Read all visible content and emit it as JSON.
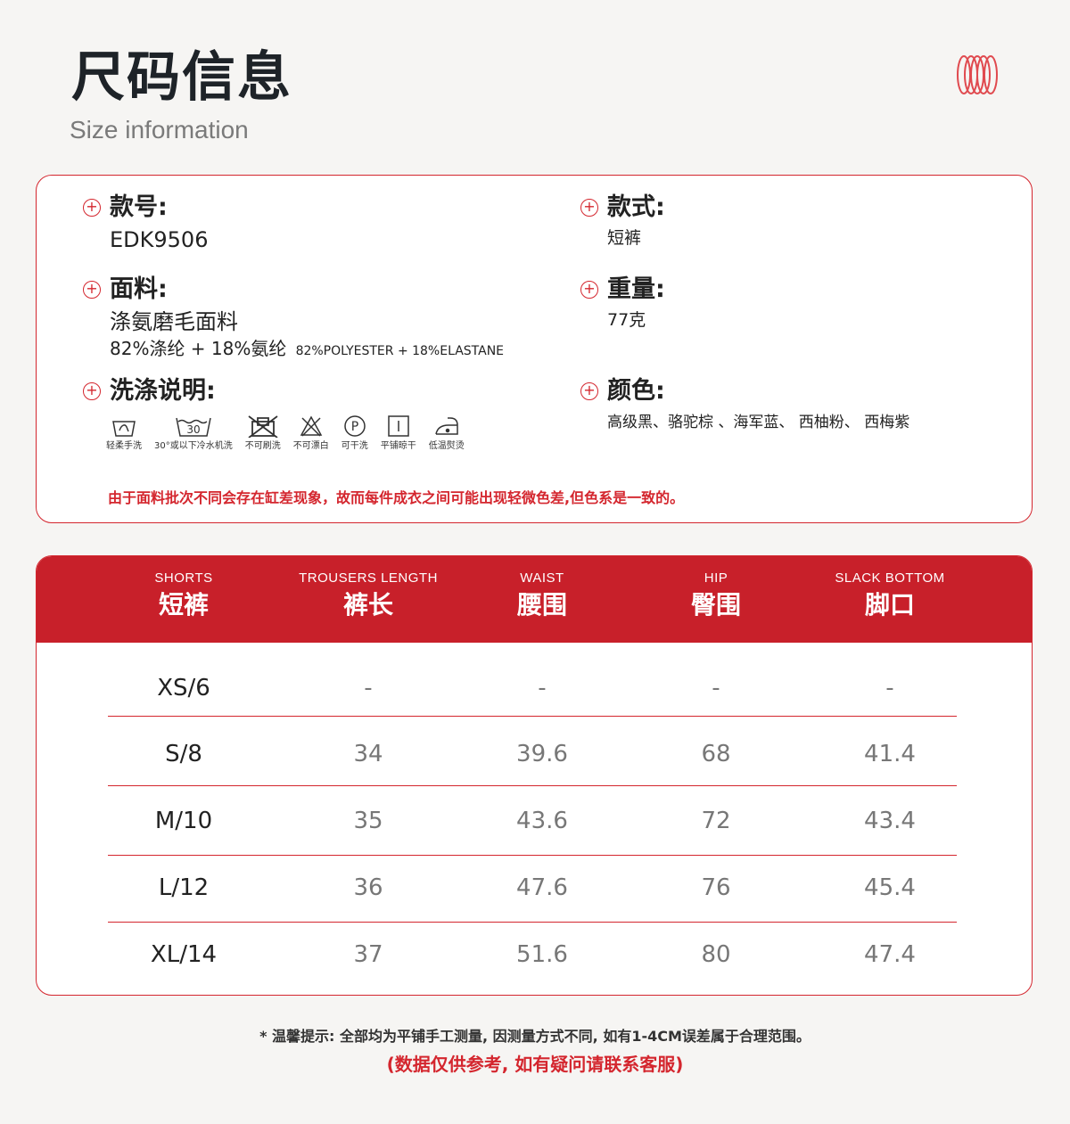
{
  "header": {
    "title": "尺码信息",
    "subtitle": "Size information"
  },
  "accent_color": "#c8202a",
  "info": {
    "style_no": {
      "label": "款号:",
      "value": "EDK9506"
    },
    "style": {
      "label": "款式:",
      "value": "短裤"
    },
    "fabric": {
      "label": "面料:",
      "value": "涤氨磨毛面料",
      "composition_cn": "82%涤纶 + 18%氨纶",
      "composition_en": "82%POLYESTER + 18%ELASTANE"
    },
    "weight": {
      "label": "重量:",
      "value": "77克"
    },
    "care": {
      "label": "洗涤说明:",
      "items": [
        {
          "icon": "hand-wash-icon",
          "label": "轻柔手洗"
        },
        {
          "icon": "machine-wash-30-icon",
          "label": "30°或以下冷水机洗",
          "temp": "30"
        },
        {
          "icon": "no-brush-icon",
          "label": "不可刷洗"
        },
        {
          "icon": "no-bleach-icon",
          "label": "不可漂白"
        },
        {
          "icon": "dry-clean-p-icon",
          "label": "可干洗",
          "letter": "P"
        },
        {
          "icon": "dry-flat-icon",
          "label": "平铺晾干"
        },
        {
          "icon": "iron-low-icon",
          "label": "低温熨烫"
        }
      ]
    },
    "color": {
      "label": "颜色:",
      "value": "高级黑、骆驼棕 、海军蓝、 西柚粉、 西梅紫"
    },
    "warning": "由于面料批次不同会存在缸差现象，故而每件成衣之间可能出现轻微色差,但色系是一致的。"
  },
  "size_table": {
    "columns": [
      {
        "en": "SHORTS",
        "cn": "短裤"
      },
      {
        "en": "TROUSERS LENGTH",
        "cn": "裤长"
      },
      {
        "en": "WAIST",
        "cn": "腰围"
      },
      {
        "en": "HIP",
        "cn": "臀围"
      },
      {
        "en": "SLACK BOTTOM",
        "cn": "脚口"
      }
    ],
    "rows": [
      [
        "XS/6",
        "-",
        "-",
        "-",
        "-"
      ],
      [
        "S/8",
        "34",
        "39.6",
        "68",
        "41.4"
      ],
      [
        "M/10",
        "35",
        "43.6",
        "72",
        "43.4"
      ],
      [
        "L/12",
        "36",
        "47.6",
        "76",
        "45.4"
      ],
      [
        "XL/14",
        "37",
        "51.6",
        "80",
        "47.4"
      ]
    ]
  },
  "footer": {
    "tip": "* 温馨提示: 全部均为平铺手工测量, 因测量方式不同, 如有1-4CM误差属于合理范围。",
    "note": "(数据仅供参考, 如有疑问请联系客服)"
  }
}
